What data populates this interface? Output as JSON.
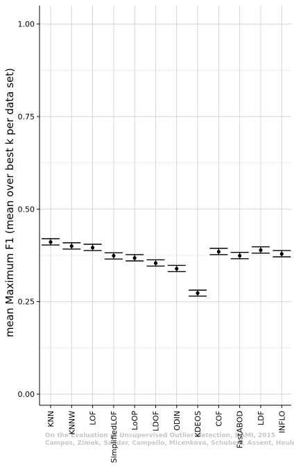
{
  "chart_data": {
    "type": "errorbar",
    "ylabel": "mean Maximum F1 (mean over best k per data set)",
    "ylim": [
      -0.03,
      1.05
    ],
    "yticks": [
      0.0,
      0.25,
      0.5,
      0.75,
      1.0
    ],
    "ytick_labels": [
      "0.00",
      "0.25",
      "0.50",
      "0.75",
      "1.00"
    ],
    "grid": true,
    "categories": [
      "KNN",
      "KNNW",
      "LOF",
      "SimplifiedLOF",
      "LoOP",
      "LDOF",
      "ODIN",
      "KDEOS",
      "COF",
      "FastABOD",
      "LDF",
      "INFLO"
    ],
    "values": [
      0.411,
      0.4,
      0.396,
      0.374,
      0.368,
      0.354,
      0.339,
      0.273,
      0.385,
      0.374,
      0.389,
      0.379
    ],
    "lower": [
      0.403,
      0.392,
      0.388,
      0.365,
      0.36,
      0.346,
      0.331,
      0.265,
      0.377,
      0.366,
      0.381,
      0.371
    ],
    "upper": [
      0.42,
      0.409,
      0.405,
      0.382,
      0.377,
      0.363,
      0.348,
      0.281,
      0.394,
      0.383,
      0.398,
      0.388
    ],
    "colors": {
      "point": "#000000",
      "grid": "#d6d6d6",
      "axis": "#000000"
    }
  },
  "watermark": {
    "line1": "On the Evaluation of Unsupervised Outlier Detection, DAMI, 2015",
    "line2": "Campos, Zimek, Sander, Campello, Micenková, Schubert, Assent, Houle"
  }
}
